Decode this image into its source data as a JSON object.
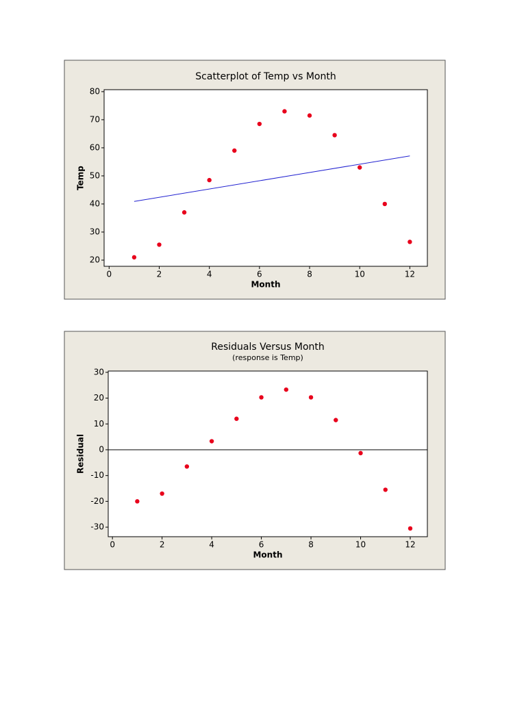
{
  "chart_data": [
    {
      "type": "scatter",
      "title": "Scatterplot of Temp vs Month",
      "x_label": "Month",
      "y_label": "Temp",
      "x": [
        1,
        2,
        3,
        4,
        5,
        6,
        7,
        8,
        9,
        10,
        11,
        12
      ],
      "values": [
        21,
        25.5,
        37,
        48.5,
        59,
        68.5,
        73,
        71.5,
        64.5,
        53,
        40,
        26.5
      ],
      "color": "#e8001c",
      "fit": {
        "x": [
          1,
          12
        ],
        "values": [
          40.9,
          57.1
        ],
        "color": "#2020d0"
      },
      "xlim": [
        -0.2,
        12.7
      ],
      "ylim": [
        17.8,
        80.7
      ],
      "xticks": [
        0,
        2,
        4,
        6,
        8,
        10,
        12
      ],
      "yticks": [
        20,
        30,
        40,
        50,
        60,
        70,
        80
      ]
    },
    {
      "type": "scatter",
      "title": "Residuals Versus Month",
      "subtitle": "(response is Temp)",
      "x_label": "Month",
      "y_label": "Residual",
      "x": [
        1,
        2,
        3,
        4,
        5,
        6,
        7,
        8,
        9,
        10,
        11,
        12
      ],
      "values": [
        -20,
        -17,
        -6.5,
        3.3,
        12,
        20.3,
        23.3,
        20.3,
        11.5,
        -1.3,
        -15.5,
        -30.5
      ],
      "color": "#e8001c",
      "refline": 0,
      "xlim": [
        -0.17,
        12.69
      ],
      "ylim": [
        -33.7,
        30.5
      ],
      "xticks": [
        0,
        2,
        4,
        6,
        8,
        10,
        12
      ],
      "yticks": [
        -30,
        -20,
        -10,
        0,
        10,
        20,
        30
      ]
    }
  ]
}
